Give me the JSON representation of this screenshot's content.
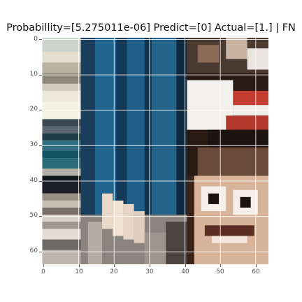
{
  "figure": {
    "title": "Probabillity=[5.275011e-06] Predict=[0] Actual=[1.] | FN"
  },
  "axes": {
    "x_ticks": [
      "0",
      "10",
      "20",
      "30",
      "40",
      "50",
      "60"
    ],
    "y_ticks": [
      "0",
      "10",
      "20",
      "30",
      "40",
      "50",
      "60"
    ],
    "grid": true
  },
  "image": {
    "description_colors": {
      "jeans_blue": "#1f5f8a",
      "stripes_red": "#b23a2e",
      "skin": "#e8c8b0",
      "white": "#f1f1ec"
    }
  }
}
